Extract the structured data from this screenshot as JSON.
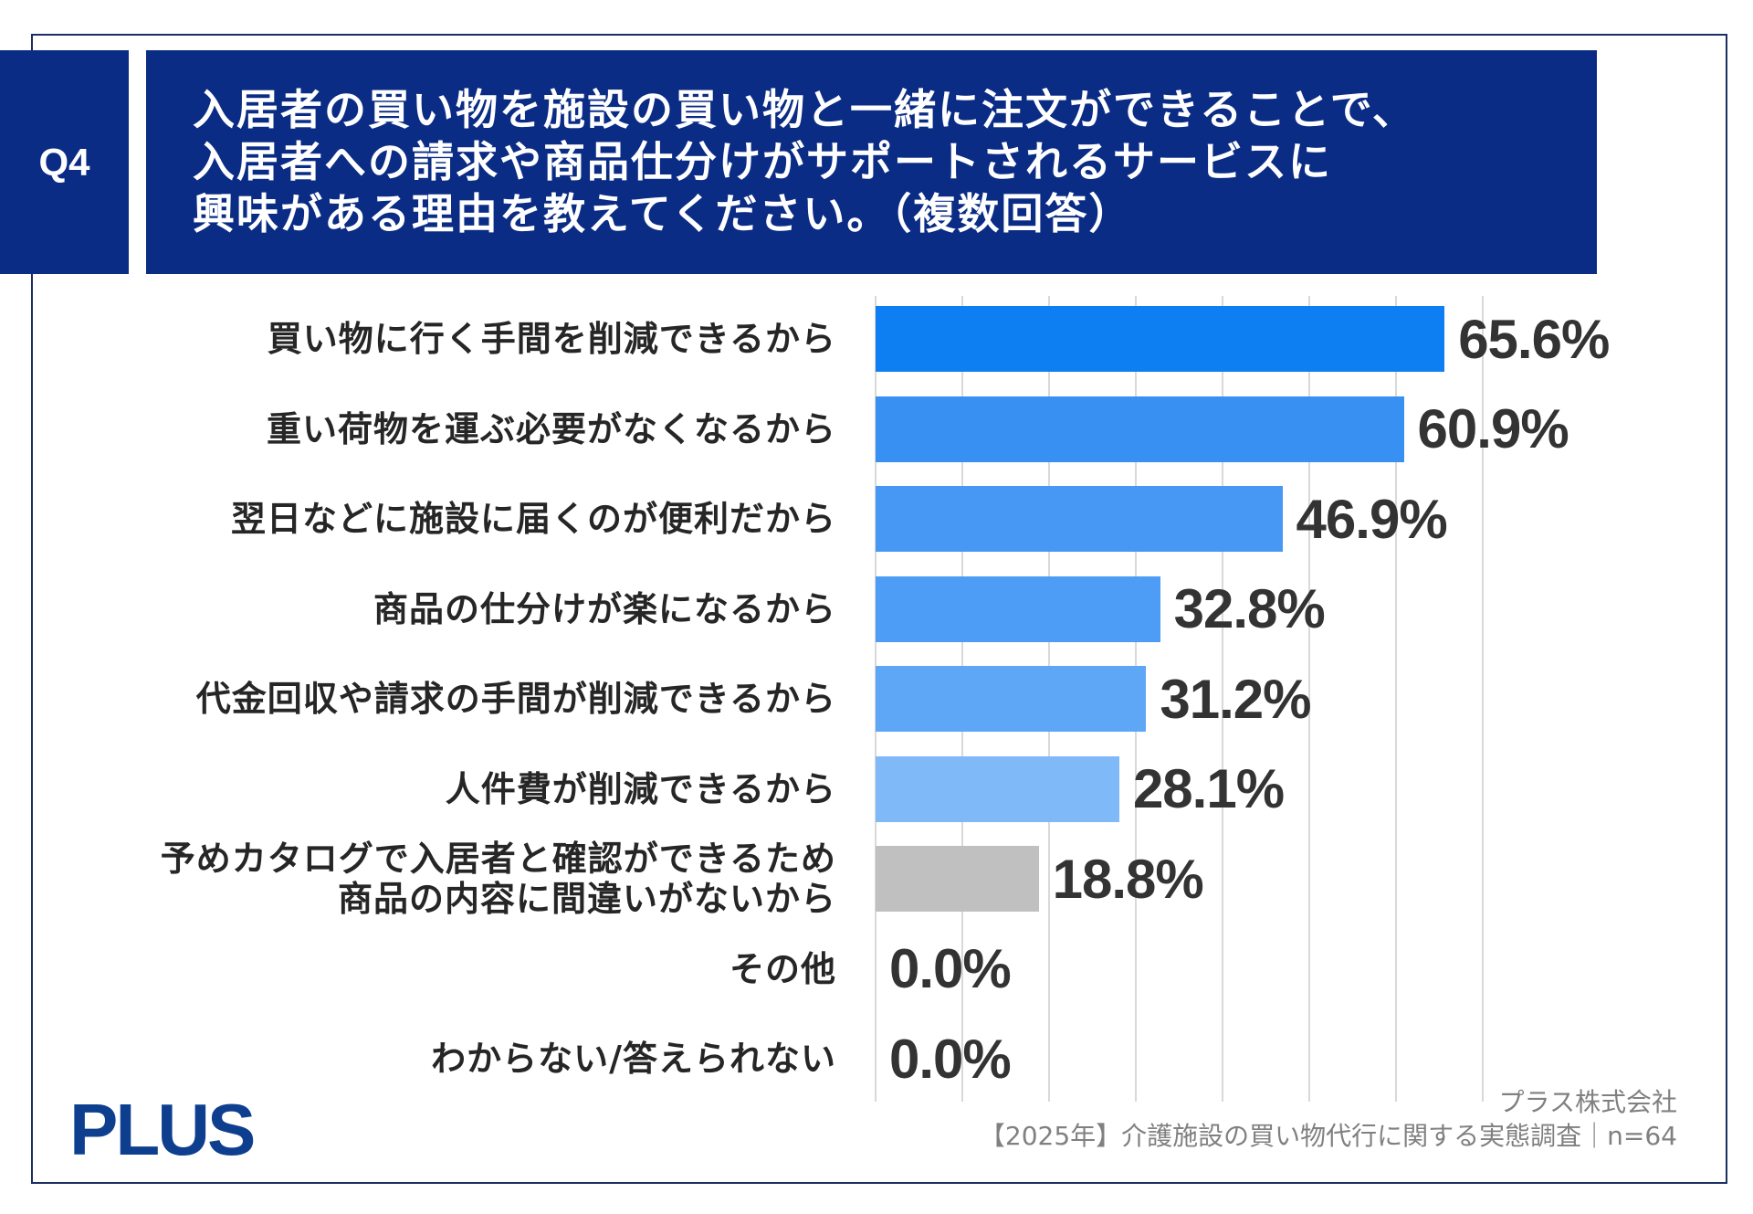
{
  "question": {
    "number": "Q4",
    "title_lines": [
      "入居者の買い物を施設の買い物と一緒に注文ができることで、",
      "入居者への請求や商品仕分けがサポートされるサービスに",
      "興味がある理由を教えてください。（複数回答）"
    ]
  },
  "chart_data": {
    "type": "bar",
    "orientation": "horizontal",
    "categories": [
      "買い物に行く手間を削減できるから",
      "重い荷物を運ぶ必要がなくなるから",
      "翌日などに施設に届くのが便利だから",
      "商品の仕分けが楽になるから",
      "代金回収や請求の手間が削減できるから",
      "人件費が削減できるから",
      "予めカタログで入居者と確認ができるため\n商品の内容に間違いがないから",
      "その他",
      "わからない/答えられない"
    ],
    "values": [
      65.6,
      60.9,
      46.9,
      32.8,
      31.2,
      28.1,
      18.8,
      0.0,
      0.0
    ],
    "data_labels": [
      "65.6%",
      "60.9%",
      "46.9%",
      "32.8%",
      "31.2%",
      "28.1%",
      "18.8%",
      "0.0%",
      "0.0%"
    ],
    "unit": "%",
    "xlim": [
      0,
      70
    ],
    "grid": true,
    "grid_interval": 10,
    "colors": [
      "#0e7ff2",
      "#3990f3",
      "#4698f4",
      "#4d9cf5",
      "#5ea6f6",
      "#7fb9f8",
      "#c0c0c0",
      "#7fb9f8",
      "#7fb9f8"
    ]
  },
  "footer": {
    "logo": "PLUS",
    "company": "プラス株式会社",
    "source": "【2025年】介護施設の買い物代行に関する実態調査｜n=64"
  },
  "colors": {
    "header_bg": "#0b2c85",
    "frame": "#1b2f63",
    "logo": "#0e3f8f",
    "gridline": "#d9d9d9",
    "source_text": "#808080"
  }
}
